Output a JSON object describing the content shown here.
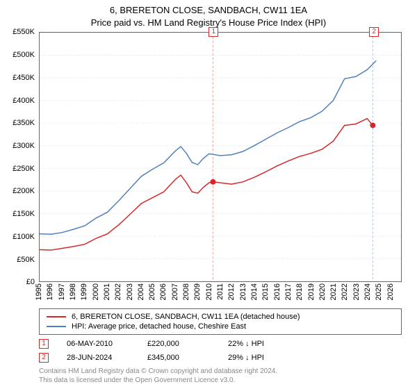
{
  "title": {
    "line1": "6, BRERETON CLOSE, SANDBACH, CW11 1EA",
    "line2": "Price paid vs. HM Land Registry's House Price Index (HPI)",
    "fontsize": 13
  },
  "chart": {
    "type": "line",
    "background_color": "#ffffff",
    "border_color": "#666666",
    "grid_color": "#e8e8e8",
    "x": {
      "min": 1995,
      "max": 2027,
      "ticks": [
        1995,
        1996,
        1997,
        1998,
        1999,
        2000,
        2001,
        2002,
        2003,
        2004,
        2005,
        2006,
        2007,
        2008,
        2009,
        2010,
        2011,
        2012,
        2013,
        2014,
        2015,
        2016,
        2017,
        2018,
        2019,
        2020,
        2021,
        2022,
        2023,
        2024,
        2025,
        2026
      ],
      "fontsize": 11
    },
    "y": {
      "min": 0,
      "max": 550000,
      "ticks": [
        0,
        50000,
        100000,
        150000,
        200000,
        250000,
        300000,
        350000,
        400000,
        450000,
        500000,
        550000
      ],
      "tick_labels": [
        "£0",
        "£50K",
        "£100K",
        "£150K",
        "£200K",
        "£250K",
        "£300K",
        "£350K",
        "£400K",
        "£450K",
        "£500K",
        "£550K"
      ],
      "fontsize": 11
    },
    "series": [
      {
        "name": "6, BRERETON CLOSE, SANDBACH, CW11 1EA (detached house)",
        "color": "#d62728",
        "line_width": 1.5,
        "data": [
          [
            1995,
            70000
          ],
          [
            1996,
            69000
          ],
          [
            1997,
            73000
          ],
          [
            1998,
            77000
          ],
          [
            1999,
            82000
          ],
          [
            2000,
            95000
          ],
          [
            2001,
            105000
          ],
          [
            2002,
            125000
          ],
          [
            2003,
            148000
          ],
          [
            2004,
            172000
          ],
          [
            2005,
            185000
          ],
          [
            2006,
            198000
          ],
          [
            2007,
            225000
          ],
          [
            2007.5,
            235000
          ],
          [
            2008,
            218000
          ],
          [
            2008.5,
            198000
          ],
          [
            2009,
            195000
          ],
          [
            2009.5,
            208000
          ],
          [
            2010,
            218000
          ],
          [
            2010.35,
            220000
          ],
          [
            2011,
            218000
          ],
          [
            2012,
            215000
          ],
          [
            2013,
            220000
          ],
          [
            2014,
            230000
          ],
          [
            2015,
            242000
          ],
          [
            2016,
            255000
          ],
          [
            2017,
            266000
          ],
          [
            2018,
            276000
          ],
          [
            2019,
            283000
          ],
          [
            2020,
            292000
          ],
          [
            2021,
            310000
          ],
          [
            2022,
            345000
          ],
          [
            2023,
            348000
          ],
          [
            2024,
            360000
          ],
          [
            2024.5,
            345000
          ]
        ]
      },
      {
        "name": "HPI: Average price, detached house, Cheshire East",
        "color": "#4f81bd",
        "line_width": 1.5,
        "data": [
          [
            1995,
            105000
          ],
          [
            1996,
            104000
          ],
          [
            1997,
            108000
          ],
          [
            1998,
            115000
          ],
          [
            1999,
            123000
          ],
          [
            2000,
            140000
          ],
          [
            2001,
            153000
          ],
          [
            2002,
            178000
          ],
          [
            2003,
            205000
          ],
          [
            2004,
            232000
          ],
          [
            2005,
            248000
          ],
          [
            2006,
            262000
          ],
          [
            2007,
            288000
          ],
          [
            2007.5,
            298000
          ],
          [
            2008,
            283000
          ],
          [
            2008.5,
            263000
          ],
          [
            2009,
            258000
          ],
          [
            2009.5,
            272000
          ],
          [
            2010,
            282000
          ],
          [
            2011,
            278000
          ],
          [
            2012,
            280000
          ],
          [
            2013,
            287000
          ],
          [
            2014,
            300000
          ],
          [
            2015,
            314000
          ],
          [
            2016,
            328000
          ],
          [
            2017,
            340000
          ],
          [
            2018,
            353000
          ],
          [
            2019,
            362000
          ],
          [
            2020,
            376000
          ],
          [
            2021,
            400000
          ],
          [
            2022,
            448000
          ],
          [
            2023,
            453000
          ],
          [
            2024,
            468000
          ],
          [
            2024.8,
            488000
          ]
        ]
      }
    ],
    "transaction_markers": [
      {
        "id": "1",
        "x": 2010.35,
        "y": 220000,
        "color": "#d62728",
        "guide_color": "#e8a0a0"
      },
      {
        "id": "2",
        "x": 2024.5,
        "y": 345000,
        "color": "#d62728",
        "guide_color": "#a8bfe0"
      }
    ]
  },
  "legend": {
    "items": [
      {
        "color": "#d62728",
        "label": "6, BRERETON CLOSE, SANDBACH, CW11 1EA (detached house)"
      },
      {
        "color": "#4f81bd",
        "label": "HPI: Average price, detached house, Cheshire East"
      }
    ]
  },
  "transactions": [
    {
      "id": "1",
      "box_color": "#d62728",
      "date": "06-MAY-2010",
      "price": "£220,000",
      "vs_hpi": "22% ↓ HPI"
    },
    {
      "id": "2",
      "box_color": "#d62728",
      "date": "28-JUN-2024",
      "price": "£345,000",
      "vs_hpi": "29% ↓ HPI"
    }
  ],
  "footer": {
    "line1": "Contains HM Land Registry data © Crown copyright and database right 2024.",
    "line2": "This data is licensed under the Open Government Licence v3.0.",
    "color": "#888888"
  }
}
